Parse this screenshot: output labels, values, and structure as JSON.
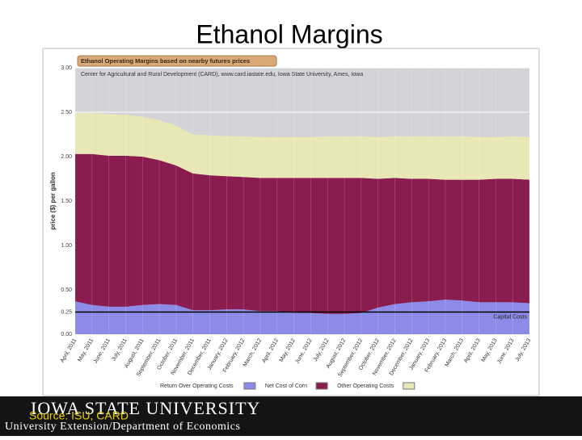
{
  "slide_title": "Ethanol Margins",
  "footer": {
    "university": "IOWA STATE UNIVERSITY",
    "department": "University Extension/Department of Economics",
    "source": "Source: ISU, CARD"
  },
  "chart_data": {
    "type": "stacked-area",
    "title": "Ethanol Operating Margins based on nearby futures prices",
    "subtitle": "Center for Agricultural and Rural Development (CARD), www.card.iastate.edu, Iowa State University, Ames, Iowa",
    "ylabel": "price ($) per gallon",
    "categories": [
      "April, 2011",
      "May, 2011",
      "June, 2011",
      "July, 2011",
      "August, 2011",
      "September, 2011",
      "October, 2011",
      "November, 2011",
      "December, 2011",
      "January, 2012",
      "February, 2012",
      "March, 2012",
      "April, 2012",
      "May, 2012",
      "June, 2012",
      "July, 2012",
      "August, 2012",
      "September, 2012",
      "October, 2012",
      "November, 2012",
      "December, 2012",
      "January, 2013",
      "February, 2013",
      "March, 2013",
      "April, 2013",
      "May, 2013",
      "June, 2013",
      "July, 2013"
    ],
    "series": [
      {
        "name": "Return Over Operating Costs",
        "color": "#8c8ce8",
        "values": [
          0.37,
          0.33,
          0.31,
          0.31,
          0.33,
          0.34,
          0.33,
          0.27,
          0.27,
          0.28,
          0.28,
          0.26,
          0.26,
          0.24,
          0.24,
          0.23,
          0.23,
          0.24,
          0.3,
          0.34,
          0.36,
          0.37,
          0.39,
          0.38,
          0.36,
          0.36,
          0.36,
          0.35
        ]
      },
      {
        "name": "Net Cost of Corn",
        "color": "#8a1c50",
        "values": [
          1.66,
          1.7,
          1.7,
          1.7,
          1.67,
          1.62,
          1.57,
          1.54,
          1.52,
          1.5,
          1.49,
          1.5,
          1.5,
          1.52,
          1.52,
          1.53,
          1.53,
          1.52,
          1.45,
          1.42,
          1.39,
          1.38,
          1.35,
          1.36,
          1.38,
          1.39,
          1.39,
          1.39
        ]
      },
      {
        "name": "Other Operating Costs",
        "color": "#e9e7b6",
        "values": [
          0.46,
          0.46,
          0.47,
          0.46,
          0.45,
          0.45,
          0.45,
          0.44,
          0.45,
          0.45,
          0.46,
          0.46,
          0.46,
          0.46,
          0.46,
          0.47,
          0.47,
          0.47,
          0.47,
          0.47,
          0.48,
          0.48,
          0.49,
          0.49,
          0.48,
          0.47,
          0.48,
          0.48
        ]
      }
    ],
    "reference_line": {
      "label": "Capital Costs",
      "value": 0.25,
      "color": "#000000"
    },
    "ylim": [
      0,
      3
    ],
    "yticks": [
      {
        "value": 0,
        "label": "0.00"
      },
      {
        "value": 0.25,
        "label": "0.25"
      },
      {
        "value": 0.5,
        "label": "0.50"
      },
      {
        "value": 1,
        "label": "1.00"
      },
      {
        "value": 1.5,
        "label": "1.50"
      },
      {
        "value": 2,
        "label": "2.00"
      },
      {
        "value": 2.5,
        "label": "2.50"
      },
      {
        "value": 3,
        "label": "3.00"
      }
    ],
    "grid": true,
    "legend": "bottom"
  }
}
